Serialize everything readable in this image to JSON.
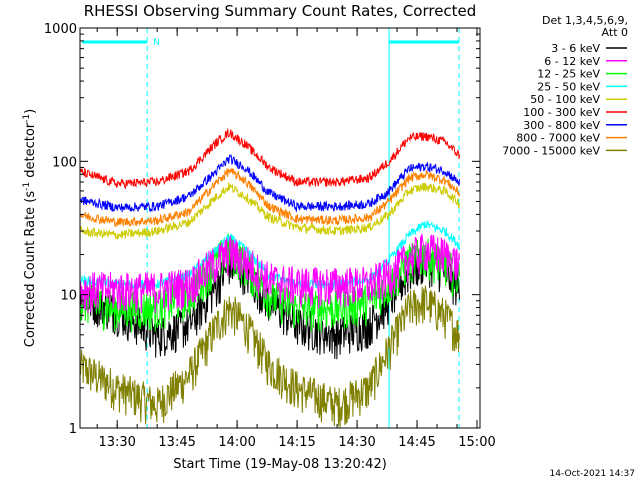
{
  "chart_data": {
    "type": "line",
    "title": "RHESSI Observing Summary Count Rates, Corrected",
    "xlabel": "Start Time (19-May-08 13:20:42)",
    "ylabel_main": "Corrected Count Rate (s",
    "ylabel_sup1": "-1",
    "ylabel_mid": " detector",
    "ylabel_sup2": "-1",
    "ylabel_end": ")",
    "y_scale": "log",
    "ylim": [
      1,
      1000
    ],
    "xlim": [
      "13:20:42",
      "15:00:45"
    ],
    "x_ticks": [
      "13:30",
      "13:45",
      "14:00",
      "14:15",
      "14:30",
      "14:45",
      "15:00"
    ],
    "y_ticks": [
      "1",
      "10",
      "100",
      "1000"
    ],
    "legend_header": [
      "Det 1,3,4,5,6,9,",
      "Att 0"
    ],
    "legend_position": "right",
    "night_intervals": [
      [
        "13:20:42",
        "13:37:30"
      ],
      [
        "14:38:00",
        "14:55:30"
      ]
    ],
    "night_label": "N",
    "footer_date": "14-Oct-2021 14:37",
    "series": [
      {
        "name": "3 - 6 keV",
        "color": "#000000",
        "x": [
          "13:20",
          "13:30",
          "13:40",
          "13:48",
          "13:55",
          "13:58",
          "14:02",
          "14:08",
          "14:15",
          "14:25",
          "14:33",
          "14:38",
          "14:43",
          "14:47",
          "14:52",
          "14:58"
        ],
        "y": [
          10,
          7.5,
          5,
          6,
          12,
          17,
          15,
          9,
          6,
          5,
          6,
          9,
          15,
          18,
          15,
          9
        ]
      },
      {
        "name": "6 - 12 keV",
        "color": "#ff00ff",
        "x": [
          "13:20",
          "13:30",
          "13:40",
          "13:48",
          "13:55",
          "13:58",
          "14:02",
          "14:08",
          "14:15",
          "14:25",
          "14:33",
          "14:38",
          "14:43",
          "14:47",
          "14:52",
          "14:58"
        ],
        "y": [
          11,
          11,
          11,
          12,
          18,
          21,
          18,
          13,
          12,
          12,
          12,
          14,
          19,
          22,
          20,
          15
        ]
      },
      {
        "name": "12 - 25 keV",
        "color": "#00ff00",
        "x": [
          "13:20",
          "13:30",
          "13:40",
          "13:48",
          "13:55",
          "13:58",
          "14:02",
          "14:08",
          "14:15",
          "14:25",
          "14:33",
          "14:38",
          "14:43",
          "14:47",
          "14:52",
          "14:58"
        ],
        "y": [
          9,
          8,
          8,
          10,
          18,
          22,
          17,
          10,
          8,
          8,
          9,
          12,
          18,
          20,
          17,
          11
        ]
      },
      {
        "name": "25 - 50 keV",
        "color": "#00ffff",
        "x": [
          "13:20",
          "13:30",
          "13:40",
          "13:48",
          "13:55",
          "13:58",
          "14:02",
          "14:08",
          "14:15",
          "14:25",
          "14:33",
          "14:38",
          "14:43",
          "14:47",
          "14:52",
          "14:58"
        ],
        "y": [
          13,
          12,
          12,
          14,
          22,
          27,
          22,
          14,
          12,
          12,
          13,
          18,
          28,
          34,
          30,
          20
        ]
      },
      {
        "name": "50 - 100 keV",
        "color": "#cccc00",
        "x": [
          "13:20",
          "13:30",
          "13:40",
          "13:48",
          "13:55",
          "13:58",
          "14:02",
          "14:08",
          "14:15",
          "14:25",
          "14:33",
          "14:38",
          "14:43",
          "14:47",
          "14:52",
          "14:58"
        ],
        "y": [
          30,
          28,
          30,
          35,
          55,
          65,
          55,
          38,
          32,
          30,
          32,
          40,
          60,
          65,
          60,
          42
        ]
      },
      {
        "name": "100 - 300 keV",
        "color": "#ff0000",
        "x": [
          "13:20",
          "13:30",
          "13:40",
          "13:48",
          "13:55",
          "13:58",
          "14:02",
          "14:08",
          "14:15",
          "14:25",
          "14:33",
          "14:38",
          "14:43",
          "14:47",
          "14:52",
          "14:58"
        ],
        "y": [
          85,
          68,
          70,
          85,
          140,
          165,
          135,
          90,
          70,
          70,
          75,
          100,
          150,
          155,
          140,
          95
        ]
      },
      {
        "name": "300 - 800 keV",
        "color": "#0000ff",
        "x": [
          "13:20",
          "13:30",
          "13:40",
          "13:48",
          "13:55",
          "13:58",
          "14:02",
          "14:08",
          "14:15",
          "14:25",
          "14:33",
          "14:38",
          "14:43",
          "14:47",
          "14:52",
          "14:58"
        ],
        "y": [
          52,
          45,
          46,
          55,
          85,
          105,
          90,
          58,
          46,
          46,
          48,
          60,
          88,
          92,
          85,
          60
        ]
      },
      {
        "name": "800 - 7000 keV",
        "color": "#ff8000",
        "x": [
          "13:20",
          "13:30",
          "13:40",
          "13:48",
          "13:55",
          "13:58",
          "14:02",
          "14:08",
          "14:15",
          "14:25",
          "14:33",
          "14:38",
          "14:43",
          "14:47",
          "14:52",
          "14:58"
        ],
        "y": [
          40,
          35,
          36,
          42,
          70,
          85,
          72,
          46,
          37,
          36,
          38,
          50,
          75,
          80,
          72,
          50
        ]
      },
      {
        "name": "7000 - 15000 keV",
        "color": "#808000",
        "x": [
          "13:20",
          "13:30",
          "13:40",
          "13:48",
          "13:55",
          "13:58",
          "14:02",
          "14:08",
          "14:15",
          "14:25",
          "14:33",
          "14:38",
          "14:43",
          "14:47",
          "14:52",
          "14:58"
        ],
        "y": [
          3,
          2,
          1.5,
          2.5,
          6,
          8,
          6,
          3,
          2,
          1.5,
          2,
          4,
          8,
          9,
          7,
          4
        ]
      }
    ]
  }
}
